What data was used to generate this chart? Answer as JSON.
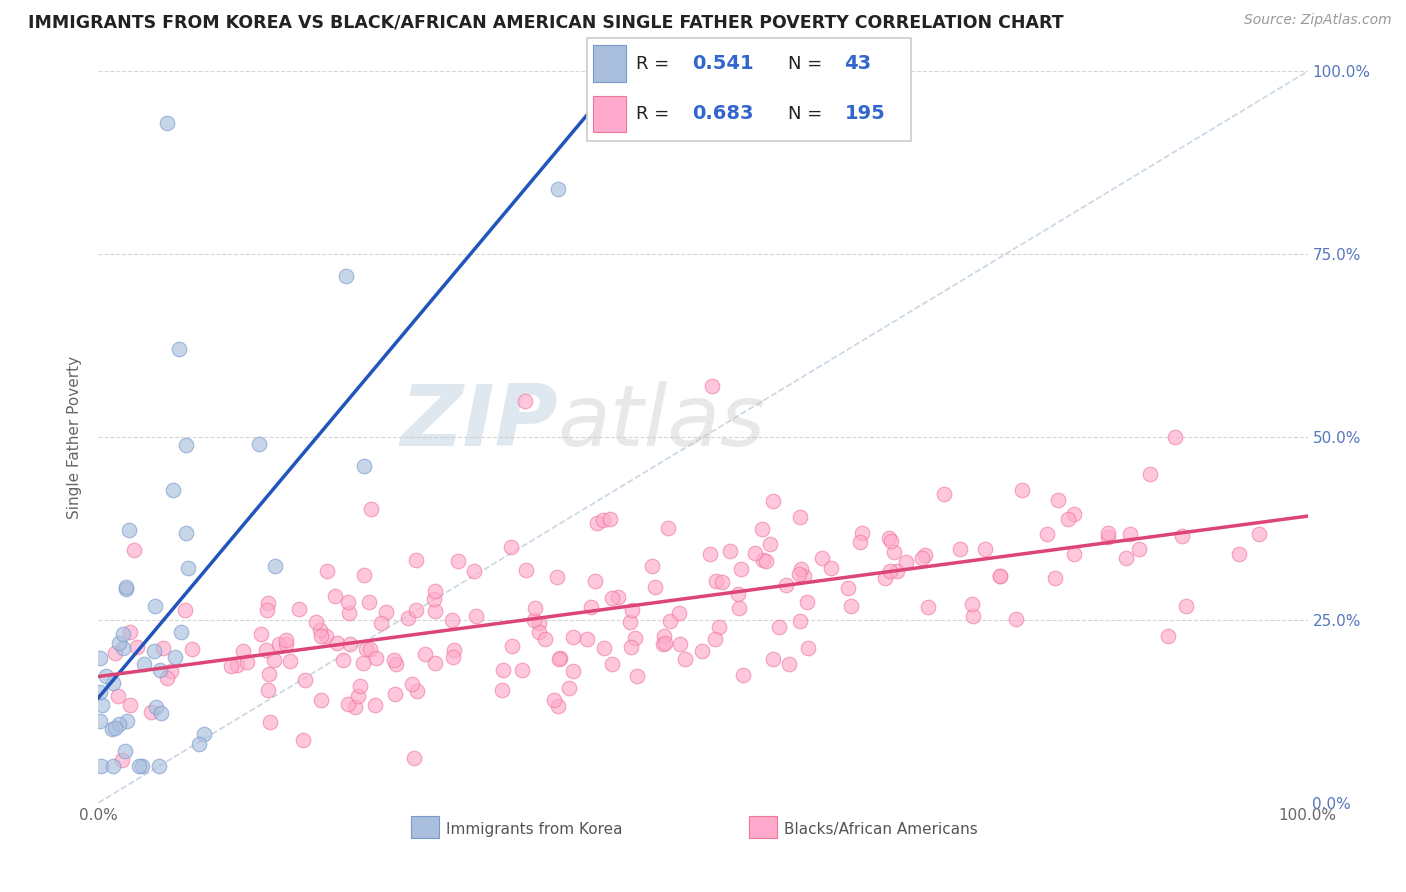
{
  "title": "IMMIGRANTS FROM KOREA VS BLACK/AFRICAN AMERICAN SINGLE FATHER POVERTY CORRELATION CHART",
  "source": "Source: ZipAtlas.com",
  "ylabel": "Single Father Poverty",
  "r_blue": 0.541,
  "n_blue": 43,
  "r_pink": 0.683,
  "n_pink": 195,
  "blue_fill": "#AABFDD",
  "blue_edge": "#7799CC",
  "blue_line": "#2255BB",
  "pink_fill": "#FFAACC",
  "pink_edge": "#EE7799",
  "pink_line": "#DD4477",
  "ref_line_color": "#BBCCDD",
  "grid_color": "#CCCCCC",
  "text_color": "#444444",
  "source_color": "#999999",
  "watermark_color": "#AACCDD",
  "legend_labels": [
    "Immigrants from Korea",
    "Blacks/African Americans"
  ],
  "xtick_labels": [
    "0.0%",
    "100.0%"
  ],
  "ytick_labels": [
    "0.0%",
    "25.0%",
    "50.0%",
    "75.0%",
    "100.0%"
  ]
}
